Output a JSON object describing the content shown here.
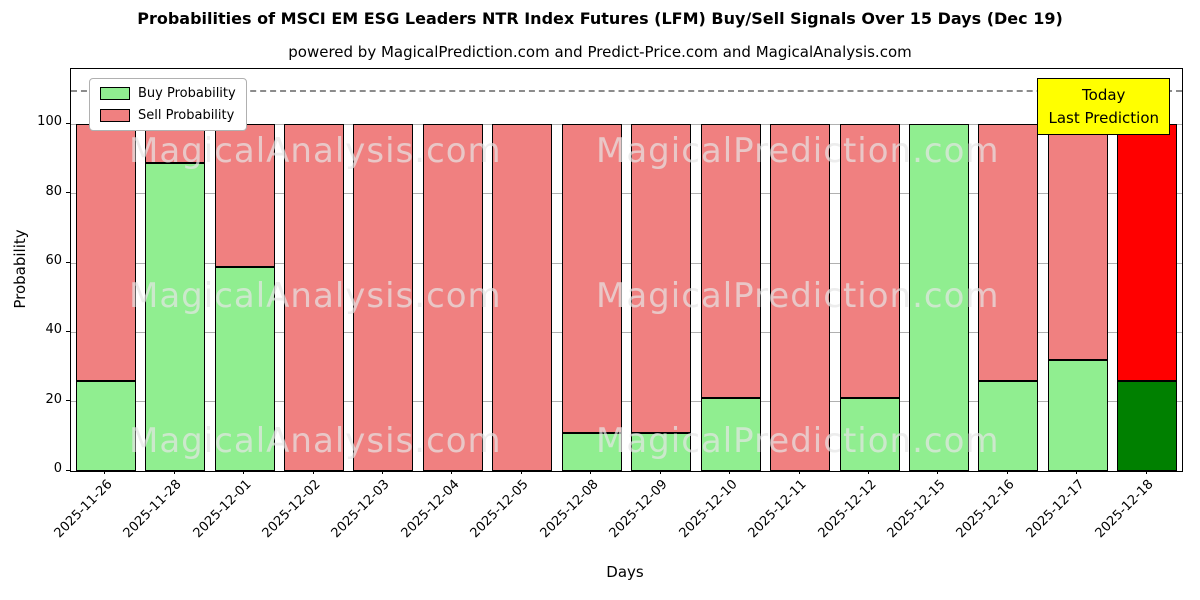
{
  "title": "Probabilities of MSCI EM ESG Leaders NTR Index Futures (LFM) Buy/Sell Signals Over 15 Days (Dec 19)",
  "subtitle": "powered by MagicalPrediction.com and Predict-Price.com and MagicalAnalysis.com",
  "chart_data": {
    "type": "bar",
    "stacked": true,
    "xlabel": "Days",
    "ylabel": "Probability",
    "ylim": [
      0,
      116
    ],
    "yticks": [
      0,
      20,
      40,
      60,
      80,
      100
    ],
    "dashed_line_y": 110,
    "grid": true,
    "legend_position": "upper left",
    "categories": [
      "2025-11-26",
      "2025-11-28",
      "2025-12-01",
      "2025-12-02",
      "2025-12-03",
      "2025-12-04",
      "2025-12-05",
      "2025-12-08",
      "2025-12-09",
      "2025-12-10",
      "2025-12-11",
      "2025-12-12",
      "2025-12-15",
      "2025-12-16",
      "2025-12-17",
      "2025-12-18"
    ],
    "series": [
      {
        "name": "Buy Probability",
        "color": "#90ee90",
        "values": [
          26,
          89,
          59,
          0,
          0,
          0,
          0,
          11,
          11,
          21,
          0,
          21,
          100,
          26,
          32,
          26
        ]
      },
      {
        "name": "Sell Probability",
        "color": "#f08080",
        "values": [
          74,
          11,
          41,
          100,
          100,
          100,
          100,
          89,
          89,
          79,
          100,
          79,
          0,
          74,
          68,
          74
        ]
      }
    ],
    "last_bar_colors": {
      "buy": "#008000",
      "sell": "#ff0000"
    },
    "annotation": {
      "line1": "Today",
      "line2": "Last Prediction",
      "bg": "#ffff00"
    },
    "watermarks": [
      "MagicalAnalysis.com",
      "MagicalPrediction.com"
    ]
  }
}
